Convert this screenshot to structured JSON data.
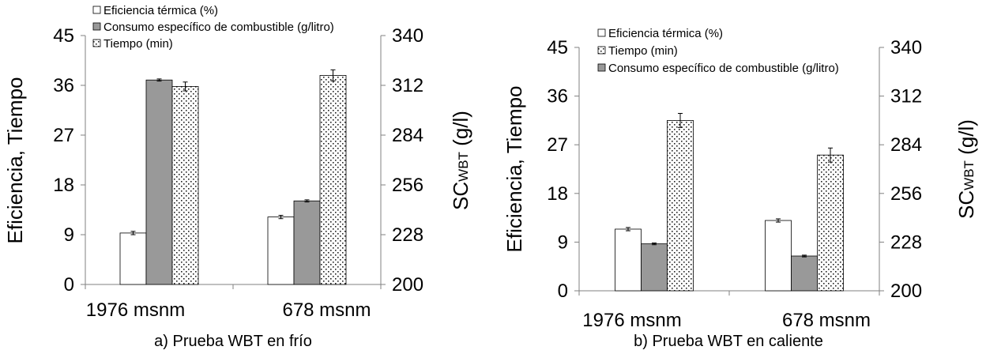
{
  "chart_data": [
    {
      "type": "bar",
      "panel": "a",
      "caption": "a) Prueba WBT en frío",
      "categories": [
        "1976 msnm",
        "678 msnm"
      ],
      "ylabel_left": "Eficiencia, Tiempo",
      "ylabel_right": "SC",
      "ylabel_right_sub": "WBT",
      "ylabel_right_unit": "(g/l)",
      "ylim_left": [
        0,
        45
      ],
      "ylim_right": [
        200,
        340
      ],
      "yticks_left": [
        "0",
        "9",
        "18",
        "27",
        "36",
        "45"
      ],
      "yticks_right": [
        "200",
        "228",
        "256",
        "284",
        "312",
        "340"
      ],
      "legend_order": [
        0,
        1,
        2
      ],
      "series": [
        {
          "name": "Eficiencia térmica (%)",
          "axis": "left",
          "pattern": "white",
          "values": [
            9.3,
            12.2
          ],
          "errors": [
            0.3,
            0.3
          ]
        },
        {
          "name": "Consumo específico de combustible (g/litro)",
          "axis": "right",
          "pattern": "gray",
          "values": [
            315,
            247
          ],
          "errors": [
            0.6,
            0.6
          ]
        },
        {
          "name": "Tiempo (min)",
          "axis": "left",
          "pattern": "dots",
          "values": [
            35.8,
            37.8
          ],
          "errors": [
            0.8,
            1.0
          ]
        }
      ]
    },
    {
      "type": "bar",
      "panel": "b",
      "caption": "b) Prueba WBT en caliente",
      "categories": [
        "1976 msnm",
        "678 msnm"
      ],
      "ylabel_left": "Eficiencia, Tiempo",
      "ylabel_right": "SC",
      "ylabel_right_sub": "WBT",
      "ylabel_right_unit": "(g/l)",
      "ylim_left": [
        0,
        45
      ],
      "ylim_right": [
        200,
        340
      ],
      "yticks_left": [
        "0",
        "9",
        "18",
        "27",
        "36",
        "45"
      ],
      "yticks_right": [
        "200",
        "228",
        "256",
        "284",
        "312",
        "340"
      ],
      "legend_order": [
        0,
        2,
        1
      ],
      "series": [
        {
          "name": "Eficiencia térmica (%)",
          "axis": "left",
          "pattern": "white",
          "values": [
            11.4,
            13.0
          ],
          "errors": [
            0.3,
            0.3
          ]
        },
        {
          "name": "Consumo específico de combustible (g/litro)",
          "axis": "right",
          "pattern": "gray",
          "values": [
            227,
            220
          ],
          "errors": [
            0.5,
            0.5
          ]
        },
        {
          "name": "Tiempo (min)",
          "axis": "left",
          "pattern": "dots",
          "values": [
            31.5,
            25.1
          ],
          "errors": [
            1.3,
            1.3
          ]
        }
      ]
    }
  ],
  "colors": {
    "gray": "#999999",
    "axis": "#808080",
    "bar_stroke": "#000000"
  }
}
